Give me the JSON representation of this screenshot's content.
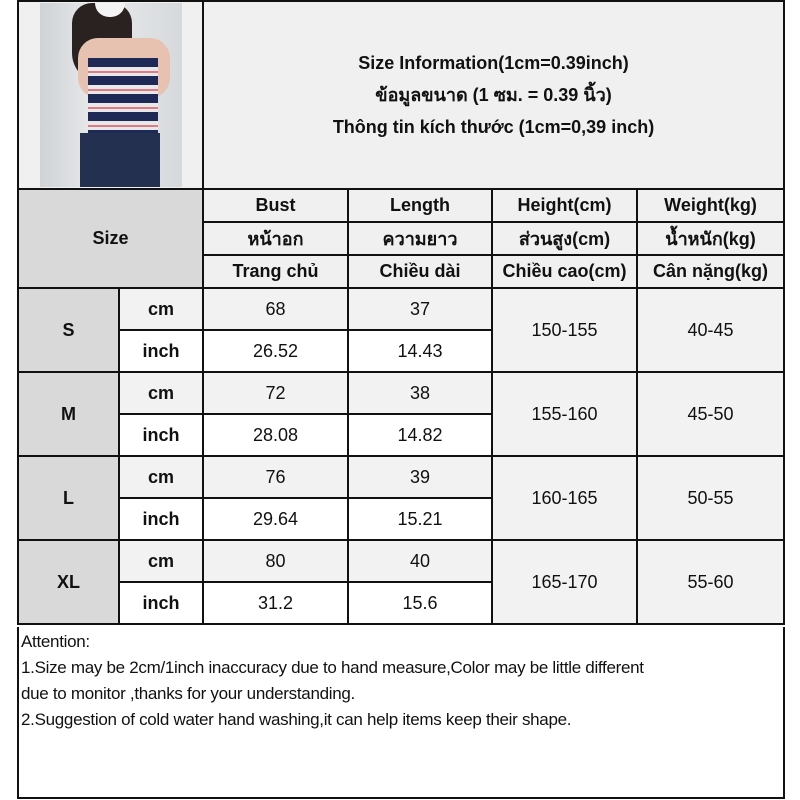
{
  "title": {
    "line1": "Size Information(1cm=0.39inch)",
    "line2": "ข้อมูลขนาด (1 ซม. = 0.39 นิ้ว)",
    "line3": "Thông tin kích thước (1cm=0,39 inch)"
  },
  "photo": {
    "alt": "product photo: striped strapless tube top"
  },
  "header": {
    "size_label": "Size",
    "columns": [
      {
        "en": "Bust",
        "th": "หน้าอก",
        "vi": "Trang chủ"
      },
      {
        "en": "Length",
        "th": "ความยาว",
        "vi": "Chiều dài"
      },
      {
        "en": "Height(cm)",
        "th": "ส่วนสูง(cm)",
        "vi": "Chiều cao(cm)"
      },
      {
        "en": "Weight(kg)",
        "th": "น้ำหนัก(kg)",
        "vi": "Cân nặng(kg)"
      }
    ]
  },
  "units": {
    "cm": "cm",
    "inch": "inch"
  },
  "sizes": [
    {
      "size": "S",
      "bust_cm": "68",
      "length_cm": "37",
      "bust_inch": "26.52",
      "length_inch": "14.43",
      "height": "150-155",
      "weight": "40-45"
    },
    {
      "size": "M",
      "bust_cm": "72",
      "length_cm": "38",
      "bust_inch": "28.08",
      "length_inch": "14.82",
      "height": "155-160",
      "weight": "45-50"
    },
    {
      "size": "L",
      "bust_cm": "76",
      "length_cm": "39",
      "bust_inch": "29.64",
      "length_inch": "15.21",
      "height": "160-165",
      "weight": "50-55"
    },
    {
      "size": "XL",
      "bust_cm": "80",
      "length_cm": "40",
      "bust_inch": "31.2",
      "length_inch": "15.6",
      "height": "165-170",
      "weight": "55-60"
    }
  ],
  "attention": {
    "heading": "Attention:",
    "note1_line1": "1.Size may be 2cm/1inch inaccuracy due to hand measure,Color may be little different",
    "note1_line2": "due to monitor ,thanks for your understanding.",
    "note2": "2.Suggestion of cold water hand washing,it can help items keep their shape."
  }
}
